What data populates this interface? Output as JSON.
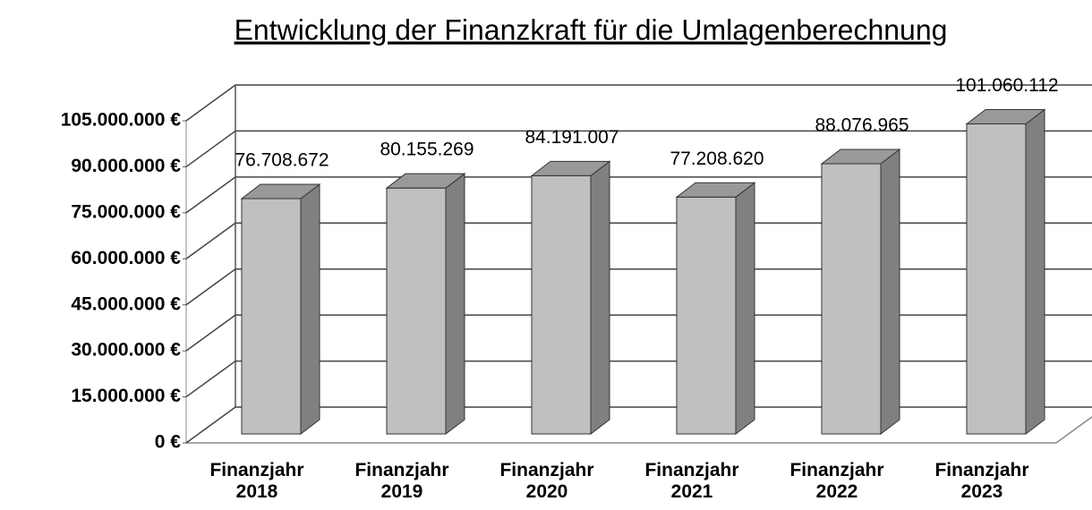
{
  "chart_data": {
    "type": "bar3d",
    "title": "Entwicklung der Finanzkraft für die Umlagenberechnung",
    "categories": [
      "Finanzjahr 2018",
      "Finanzjahr 2019",
      "Finanzjahr 2020",
      "Finanzjahr 2021",
      "Finanzjahr 2022",
      "Finanzjahr 2023"
    ],
    "values": [
      76708672,
      80155269,
      84191007,
      77208620,
      88076965,
      101060112
    ],
    "value_labels": [
      "76.708.672",
      "80.155.269",
      "84.191.007",
      "77.208.620",
      "88.076.965",
      "101.060.112"
    ],
    "color": "#c0c0c0",
    "ylim": [
      0,
      105000000
    ],
    "yticks": [
      {
        "value": 0,
        "label": "0 €"
      },
      {
        "value": 15000000,
        "label": "15.000.000 €"
      },
      {
        "value": 30000000,
        "label": "30.000.000 €"
      },
      {
        "value": 45000000,
        "label": "45.000.000 €"
      },
      {
        "value": 60000000,
        "label": "60.000.000 €"
      },
      {
        "value": 75000000,
        "label": "75.000.000 €"
      },
      {
        "value": 90000000,
        "label": "90.000.000 €"
      },
      {
        "value": 105000000,
        "label": "105.000.000 €"
      }
    ],
    "grid": true
  }
}
